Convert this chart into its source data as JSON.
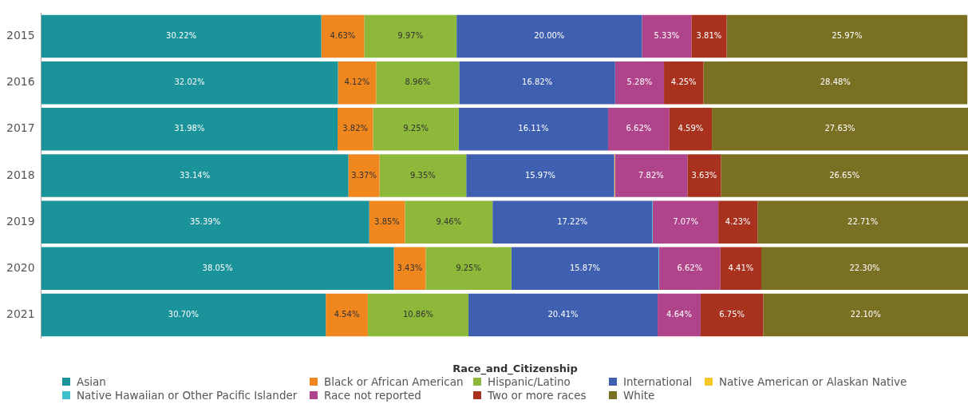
{
  "chart_data": {
    "type": "bar",
    "orientation": "horizontal",
    "stacked": true,
    "categories": [
      "2015",
      "2016",
      "2017",
      "2018",
      "2019",
      "2020",
      "2021"
    ],
    "xlim": [
      0,
      100
    ],
    "tick_labels": "y",
    "grid": false,
    "legend": "bottom",
    "legend_title": "Race_and_Citizenship",
    "series": [
      {
        "name": "Asian",
        "color": "#1a939b",
        "values": [
          30.22,
          32.02,
          31.98,
          33.14,
          35.39,
          38.05,
          30.7
        ],
        "value_labels": [
          "30.22%",
          "32.02%",
          "31.98%",
          "33.14%",
          "35.39%",
          "38.05%",
          "30.70%"
        ]
      },
      {
        "name": "Black or African American",
        "color": "#f0861e",
        "values": [
          4.63,
          4.12,
          3.82,
          3.37,
          3.85,
          3.43,
          4.54
        ],
        "value_labels": [
          "4.63%",
          "4.12%",
          "3.82%",
          "3.37%",
          "3.85%",
          "3.43%",
          "4.54%"
        ]
      },
      {
        "name": "Hispanic/Latino",
        "color": "#8db83a",
        "values": [
          9.97,
          8.96,
          9.25,
          9.35,
          9.46,
          9.25,
          10.86
        ],
        "value_labels": [
          "9.97%",
          "8.96%",
          "9.25%",
          "9.35%",
          "9.46%",
          "9.25%",
          "10.86%"
        ]
      },
      {
        "name": "International",
        "color": "#3f5fb0",
        "values": [
          20.0,
          16.82,
          16.11,
          15.97,
          17.22,
          15.87,
          20.41
        ],
        "value_labels": [
          "20.00%",
          "16.82%",
          "16.11%",
          "15.97%",
          "17.22%",
          "15.87%",
          "20.41%"
        ]
      },
      {
        "name": "Native American or Alaskan Native",
        "color": "#f5c825",
        "values": [
          null,
          null,
          null,
          0.07,
          null,
          null,
          null
        ],
        "value_labels": [
          null,
          null,
          null,
          null,
          null,
          null,
          null
        ]
      },
      {
        "name": "Native Hawaiian or Other Pacific Islander",
        "color": "#3fc0cc",
        "values": [
          null,
          null,
          null,
          null,
          0.07,
          0.07,
          null
        ],
        "value_labels": [
          null,
          null,
          null,
          null,
          null,
          null,
          null
        ]
      },
      {
        "name": "Race not reported",
        "color": "#b0448a",
        "values": [
          5.33,
          5.28,
          6.62,
          7.82,
          7.07,
          6.62,
          4.64
        ],
        "value_labels": [
          "5.33%",
          "5.28%",
          "6.62%",
          "7.82%",
          "7.07%",
          "6.62%",
          "4.64%"
        ]
      },
      {
        "name": "Two or more races",
        "color": "#a8321e",
        "values": [
          3.81,
          4.25,
          4.59,
          3.63,
          4.23,
          4.41,
          6.75
        ],
        "value_labels": [
          "3.81%",
          "4.25%",
          "4.59%",
          "3.63%",
          "4.23%",
          "4.41%",
          "6.75%"
        ]
      },
      {
        "name": "White",
        "color": "#7a7024",
        "values": [
          25.97,
          28.48,
          27.63,
          26.65,
          22.71,
          22.3,
          22.1
        ],
        "value_labels": [
          "25.97%",
          "28.48%",
          "27.63%",
          "26.65%",
          "22.71%",
          "22.30%",
          "22.10%"
        ]
      }
    ]
  }
}
